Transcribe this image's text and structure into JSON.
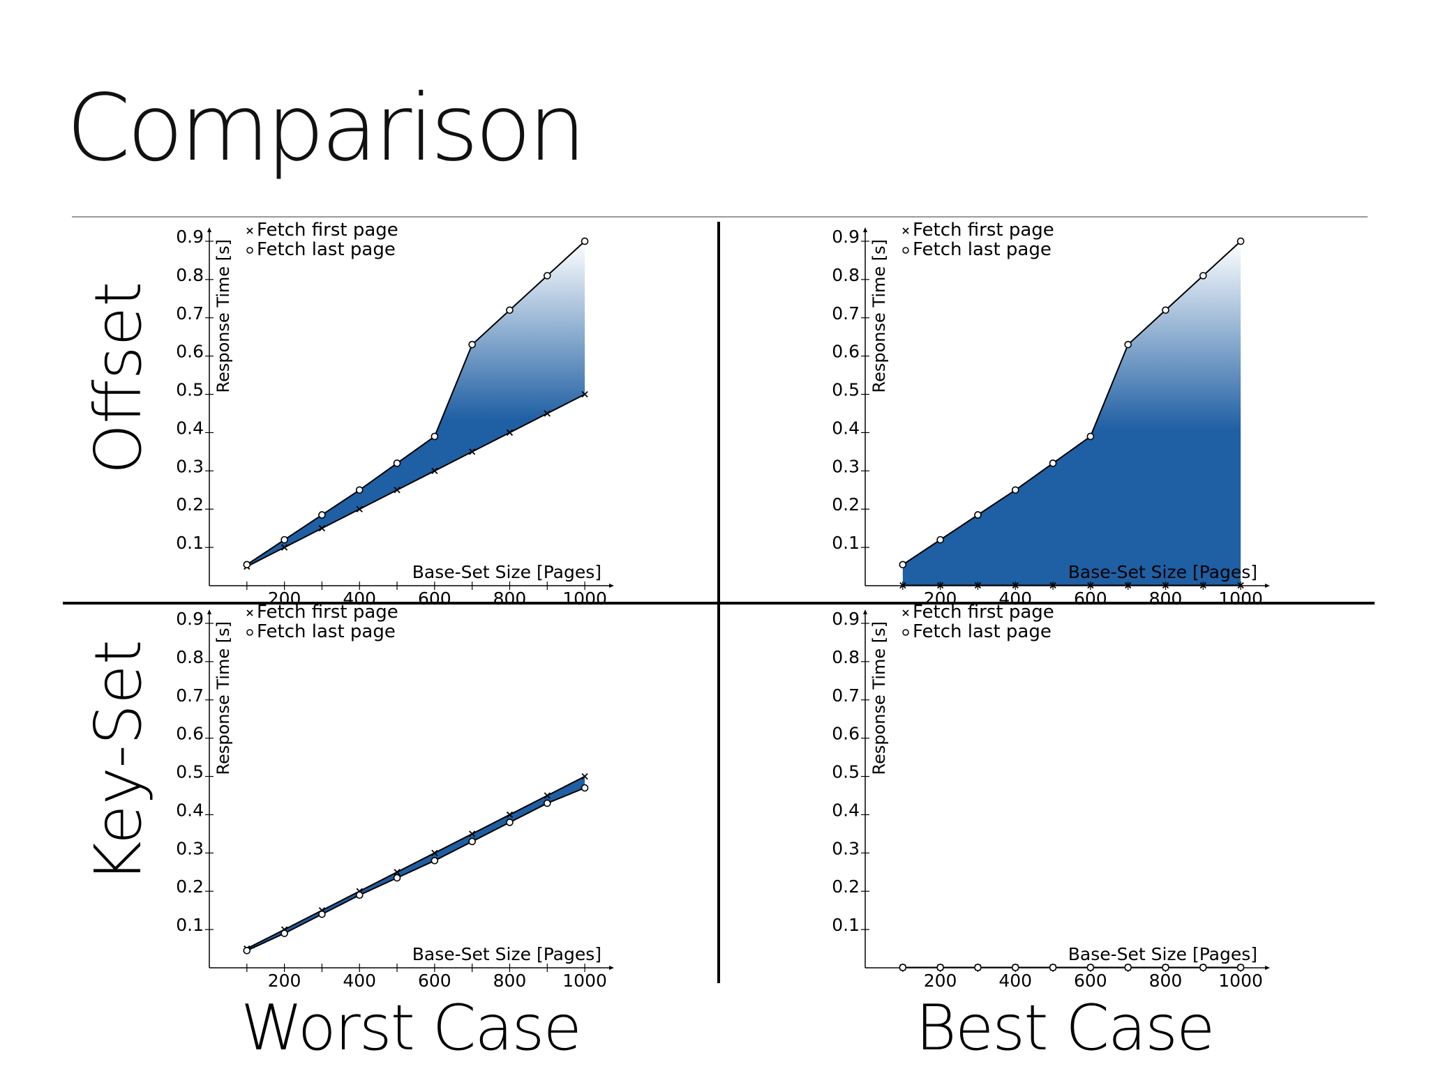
{
  "title": "Comparison",
  "row_labels": [
    "Offset",
    "Key-Set"
  ],
  "column_labels": [
    "Worst Case",
    "Best Case"
  ],
  "colors": {
    "fill": "#1f5fa3",
    "fill_light": "#ffffff",
    "line": "#000000"
  },
  "chart_data": [
    {
      "type": "area",
      "row": "Offset",
      "column": "Worst Case",
      "xlabel": "Base-Set Size [Pages]",
      "ylabel": "Response Time [s]",
      "xlim": [
        0,
        1050
      ],
      "ylim": [
        0,
        0.92
      ],
      "xticks": [
        200,
        400,
        600,
        800,
        1000
      ],
      "yticks": [
        0.1,
        0.2,
        0.3,
        0.4,
        0.5,
        0.6,
        0.7,
        0.8,
        0.9
      ],
      "legend_position": "top-left",
      "x": [
        100,
        200,
        300,
        400,
        500,
        600,
        700,
        800,
        900,
        1000
      ],
      "series": [
        {
          "name": "Fetch first page",
          "marker": "x",
          "values": [
            0.05,
            0.1,
            0.15,
            0.2,
            0.25,
            0.3,
            0.35,
            0.4,
            0.45,
            0.5
          ]
        },
        {
          "name": "Fetch last page",
          "marker": "o",
          "values": [
            0.055,
            0.12,
            0.185,
            0.25,
            0.32,
            0.39,
            0.63,
            0.72,
            0.81,
            0.9
          ]
        }
      ],
      "fill_gradient": "vertical"
    },
    {
      "type": "area",
      "row": "Offset",
      "column": "Best Case",
      "xlabel": "Base-Set Size [Pages]",
      "ylabel": "Response Time [s]",
      "xlim": [
        0,
        1050
      ],
      "ylim": [
        0,
        0.92
      ],
      "xticks": [
        200,
        400,
        600,
        800,
        1000
      ],
      "yticks": [
        0.1,
        0.2,
        0.3,
        0.4,
        0.5,
        0.6,
        0.7,
        0.8,
        0.9
      ],
      "legend_position": "top-left",
      "x": [
        100,
        200,
        300,
        400,
        500,
        600,
        700,
        800,
        900,
        1000
      ],
      "series": [
        {
          "name": "Fetch first page",
          "marker": "x",
          "values": [
            0.001,
            0.001,
            0.001,
            0.001,
            0.001,
            0.001,
            0.001,
            0.001,
            0.001,
            0.001
          ]
        },
        {
          "name": "Fetch last page",
          "marker": "o",
          "values": [
            0.055,
            0.12,
            0.185,
            0.25,
            0.32,
            0.39,
            0.63,
            0.72,
            0.81,
            0.9
          ]
        }
      ],
      "fill_gradient": "vertical"
    },
    {
      "type": "area",
      "row": "Key-Set",
      "column": "Worst Case",
      "xlabel": "Base-Set Size [Pages]",
      "ylabel": "Response Time [s]",
      "xlim": [
        0,
        1050
      ],
      "ylim": [
        0,
        0.92
      ],
      "xticks": [
        200,
        400,
        600,
        800,
        1000
      ],
      "yticks": [
        0.1,
        0.2,
        0.3,
        0.4,
        0.5,
        0.6,
        0.7,
        0.8,
        0.9
      ],
      "legend_position": "top-left",
      "x": [
        100,
        200,
        300,
        400,
        500,
        600,
        700,
        800,
        900,
        1000
      ],
      "series": [
        {
          "name": "Fetch first page",
          "marker": "x",
          "values": [
            0.05,
            0.1,
            0.15,
            0.2,
            0.25,
            0.3,
            0.35,
            0.4,
            0.45,
            0.5
          ]
        },
        {
          "name": "Fetch last page",
          "marker": "o",
          "values": [
            0.045,
            0.09,
            0.14,
            0.19,
            0.235,
            0.28,
            0.33,
            0.38,
            0.43,
            0.47
          ]
        }
      ],
      "fill_gradient": "none"
    },
    {
      "type": "area",
      "row": "Key-Set",
      "column": "Best Case",
      "xlabel": "Base-Set Size [Pages]",
      "ylabel": "Response Time [s]",
      "xlim": [
        0,
        1050
      ],
      "ylim": [
        0,
        0.92
      ],
      "xticks": [
        200,
        400,
        600,
        800,
        1000
      ],
      "yticks": [
        0.1,
        0.2,
        0.3,
        0.4,
        0.5,
        0.6,
        0.7,
        0.8,
        0.9
      ],
      "legend_position": "top-left",
      "x": [
        100,
        200,
        300,
        400,
        500,
        600,
        700,
        800,
        900,
        1000
      ],
      "series": [
        {
          "name": "Fetch first page",
          "marker": "x",
          "values": [
            0.001,
            0.001,
            0.001,
            0.001,
            0.001,
            0.001,
            0.001,
            0.001,
            0.001,
            0.001
          ]
        },
        {
          "name": "Fetch last page",
          "marker": "o",
          "values": [
            0.001,
            0.001,
            0.001,
            0.001,
            0.001,
            0.001,
            0.001,
            0.001,
            0.001,
            0.001
          ]
        }
      ],
      "fill_gradient": "none"
    }
  ]
}
